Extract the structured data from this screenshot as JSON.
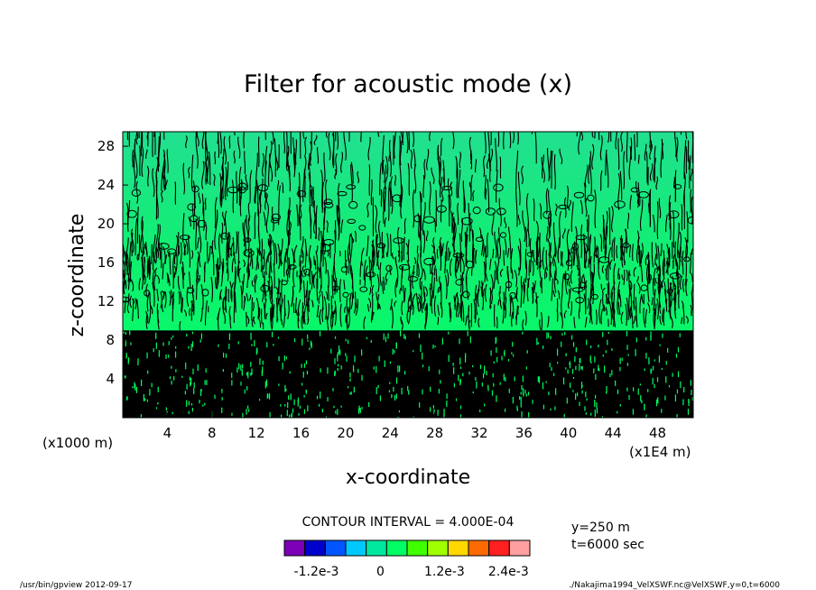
{
  "chart_data": {
    "type": "heatmap",
    "title": "Filter for acoustic mode (x)",
    "xlabel": "x-coordinate",
    "ylabel": "z-coordinate",
    "x_ticks": [
      "4",
      "8",
      "12",
      "16",
      "20",
      "24",
      "28",
      "32",
      "36",
      "40",
      "44",
      "48"
    ],
    "x_tick_values": [
      4,
      8,
      12,
      16,
      20,
      24,
      28,
      32,
      36,
      40,
      44,
      48
    ],
    "xlim": [
      0,
      51.2
    ],
    "x_unit_left": "(x1000 m)",
    "x_unit_right": "(x1E4 m)",
    "y_ticks": [
      "4",
      "8",
      "12",
      "16",
      "20",
      "24",
      "28"
    ],
    "y_tick_values": [
      4,
      8,
      12,
      16,
      20,
      24,
      28
    ],
    "ylim": [
      0,
      29.5
    ],
    "contour_interval_label": "CONTOUR INTERVAL = 4.000E-04",
    "colorbar": {
      "colors": [
        "#7b00b8",
        "#0000cc",
        "#0055ff",
        "#00c8ff",
        "#00e8a0",
        "#00ff64",
        "#40ff00",
        "#a0ff00",
        "#ffd800",
        "#ff6a00",
        "#ff2020",
        "#ffa0a0"
      ],
      "labels": [
        "-1.2e-3",
        "0",
        "1.2e-3",
        "2.4e-3"
      ],
      "label_values": [
        -0.0012,
        0,
        0.0012,
        0.0024
      ],
      "min": -0.0018,
      "max": 0.0028
    },
    "dominant_band_color": "#00ff64",
    "upper_band_color": "#1ce88c",
    "info_lines": [
      "y=250 m",
      "t=6000 sec"
    ]
  },
  "footer": {
    "left": "/usr/bin/gpview   2012-09-17",
    "right": "./Nakajima1994_VelXSWF.nc@VelXSWF,y=0,t=6000"
  }
}
